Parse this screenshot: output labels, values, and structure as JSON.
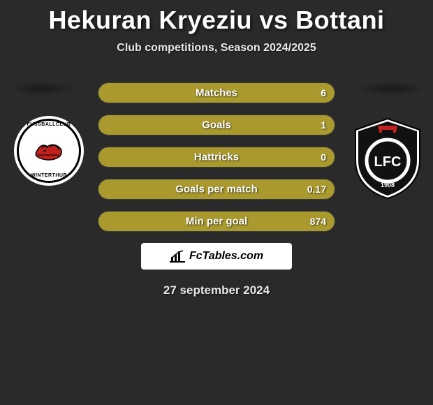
{
  "title": "Hekuran Kryeziu vs Bottani",
  "subtitle": "Club competitions, Season 2024/2025",
  "date": "27 september 2024",
  "branding_text": "FcTables.com",
  "colors": {
    "background": "#2a2a2a",
    "bar_fill": "#aa9a2e",
    "bar_border": "#3a3a3a",
    "text": "#ffffff",
    "branding_bg": "#ffffff",
    "branding_text": "#000000",
    "logo_right_bg": "#111111",
    "logo_right_accent": "#c02020"
  },
  "logos": {
    "left": {
      "top_text": "FUSSBALLCLUB",
      "bottom_text": "WINTERTHUR"
    },
    "right": {
      "letters": "LFC",
      "year": "1908"
    }
  },
  "stats": [
    {
      "label": "Matches",
      "left_value": "",
      "right_value": "6",
      "left_fill_pct": 50,
      "right_fill_pct": 50
    },
    {
      "label": "Goals",
      "left_value": "",
      "right_value": "1",
      "left_fill_pct": 50,
      "right_fill_pct": 50
    },
    {
      "label": "Hattricks",
      "left_value": "",
      "right_value": "0",
      "left_fill_pct": 50,
      "right_fill_pct": 50
    },
    {
      "label": "Goals per match",
      "left_value": "",
      "right_value": "0.17",
      "left_fill_pct": 50,
      "right_fill_pct": 50
    },
    {
      "label": "Min per goal",
      "left_value": "",
      "right_value": "874",
      "left_fill_pct": 50,
      "right_fill_pct": 50
    }
  ]
}
